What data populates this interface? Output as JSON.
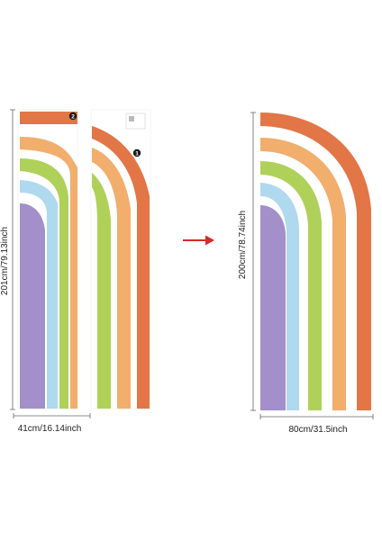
{
  "panels": {
    "left": {
      "height_label": "201cm/79.13inch",
      "width_label": "41cm/16.14inch",
      "piece_numbers": [
        "2",
        "1"
      ]
    },
    "right": {
      "height_label": "200cm/78.74inch",
      "width_label": "80cm/31.5inch"
    }
  },
  "colors": {
    "red_orange": "#e06a36",
    "orange": "#f0a760",
    "green": "#a8cd4c",
    "blue": "#a8d6ee",
    "purple": "#9b86c4",
    "arrow": "#d42a2a",
    "dimension_line": "#666666"
  },
  "icons": [
    "arrow-right-icon"
  ]
}
